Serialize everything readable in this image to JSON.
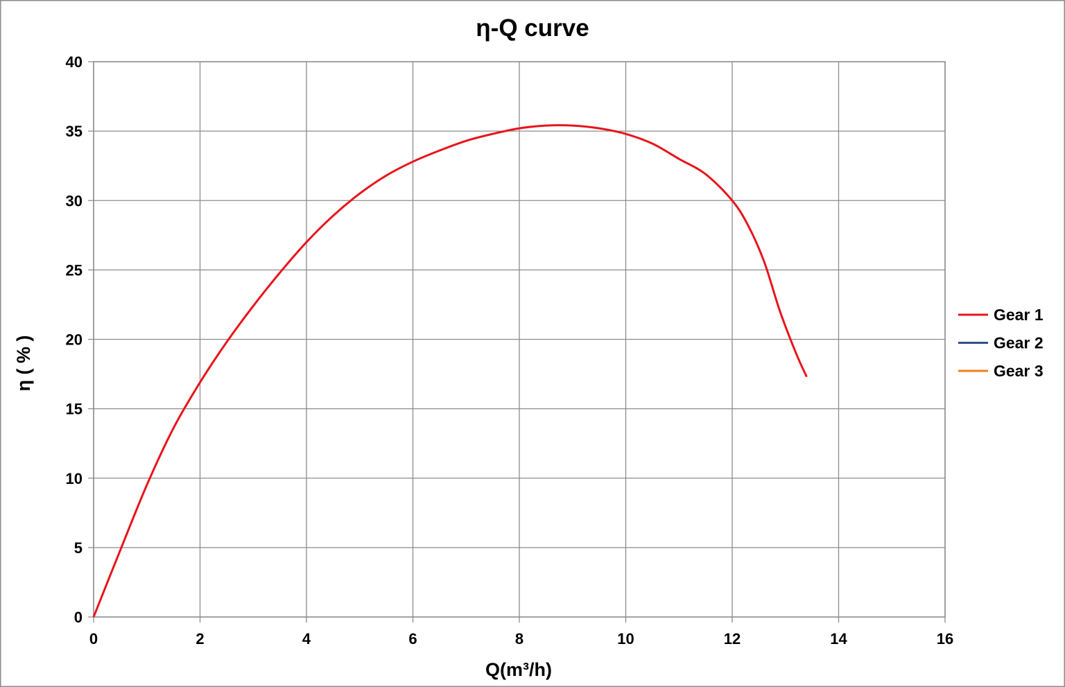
{
  "chart_data": {
    "type": "line",
    "title": "η-Q  curve",
    "xlabel": "Q(m³/h)",
    "ylabel": "η ( % )",
    "xlim": [
      0,
      16
    ],
    "ylim": [
      0,
      40
    ],
    "xticks": [
      "0",
      "2",
      "4",
      "6",
      "8",
      "10",
      "12",
      "14",
      "16"
    ],
    "yticks": [
      "0",
      "5",
      "10",
      "15",
      "20",
      "25",
      "30",
      "35",
      "40"
    ],
    "grid": true,
    "legend_position": "right",
    "series": [
      {
        "name": "Gear 1",
        "color": "#e8141b",
        "x": [
          0,
          0.5,
          1.0,
          1.5,
          2.0,
          2.5,
          3.0,
          3.5,
          4.0,
          4.5,
          5.0,
          5.5,
          6.0,
          6.5,
          7.0,
          7.5,
          8.0,
          8.5,
          9.0,
          9.5,
          10.0,
          10.5,
          11.0,
          11.5,
          12.0,
          12.3,
          12.6,
          12.9,
          13.2,
          13.4
        ],
        "y": [
          0,
          4.8,
          9.5,
          13.6,
          16.9,
          19.8,
          22.4,
          24.8,
          27.0,
          28.9,
          30.5,
          31.8,
          32.8,
          33.6,
          34.3,
          34.8,
          35.2,
          35.4,
          35.4,
          35.2,
          34.8,
          34.1,
          33.0,
          31.9,
          30.0,
          28.2,
          25.6,
          22.0,
          19.0,
          17.3
        ]
      },
      {
        "name": "Gear 2",
        "color": "#2f4f8f",
        "x": [],
        "y": []
      },
      {
        "name": "Gear 3",
        "color": "#ef7d1a",
        "x": [],
        "y": []
      }
    ]
  }
}
